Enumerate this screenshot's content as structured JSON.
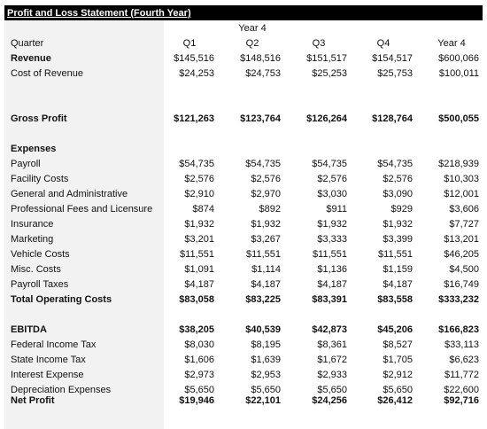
{
  "title": "Profit and Loss Statement (Fourth Year)",
  "year_label": "Year 4",
  "header": {
    "label": "Quarter",
    "columns": [
      "Q1",
      "Q2",
      "Q3",
      "Q4",
      "Year 4"
    ]
  },
  "revenue": {
    "label": "Revenue",
    "values": [
      "$145,516",
      "$148,516",
      "$151,517",
      "$154,517",
      "$600,066"
    ]
  },
  "cost_of_revenue": {
    "label": "Cost of Revenue",
    "values": [
      "$24,253",
      "$24,753",
      "$25,253",
      "$25,753",
      "$100,011"
    ]
  },
  "gross_profit": {
    "label": "Gross Profit",
    "values": [
      "$121,263",
      "$123,764",
      "$126,264",
      "$128,764",
      "$500,055"
    ]
  },
  "expenses_heading": "Expenses",
  "expenses": [
    {
      "label": "Payroll",
      "values": [
        "$54,735",
        "$54,735",
        "$54,735",
        "$54,735",
        "$218,939"
      ]
    },
    {
      "label": "Facility Costs",
      "values": [
        "$2,576",
        "$2,576",
        "$2,576",
        "$2,576",
        "$10,303"
      ]
    },
    {
      "label": "General and Administrative",
      "values": [
        "$2,910",
        "$2,970",
        "$3,030",
        "$3,090",
        "$12,001"
      ]
    },
    {
      "label": "Professional Fees and Licensure",
      "values": [
        "$874",
        "$892",
        "$911",
        "$929",
        "$3,606"
      ]
    },
    {
      "label": "Insurance",
      "values": [
        "$1,932",
        "$1,932",
        "$1,932",
        "$1,932",
        "$7,727"
      ]
    },
    {
      "label": "Marketing",
      "values": [
        "$3,201",
        "$3,267",
        "$3,333",
        "$3,399",
        "$13,201"
      ]
    },
    {
      "label": "Vehicle Costs",
      "values": [
        "$11,551",
        "$11,551",
        "$11,551",
        "$11,551",
        "$46,205"
      ]
    },
    {
      "label": "Misc. Costs",
      "values": [
        "$1,091",
        "$1,114",
        "$1,136",
        "$1,159",
        "$4,500"
      ]
    },
    {
      "label": "Payroll Taxes",
      "values": [
        "$4,187",
        "$4,187",
        "$4,187",
        "$4,187",
        "$16,749"
      ]
    }
  ],
  "total_operating_costs": {
    "label": "Total Operating Costs",
    "values": [
      "$83,058",
      "$83,225",
      "$83,391",
      "$83,558",
      "$333,232"
    ]
  },
  "ebitda": {
    "label": "EBITDA",
    "values": [
      "$38,205",
      "$40,539",
      "$42,873",
      "$45,206",
      "$166,823"
    ]
  },
  "below_ebitda": [
    {
      "label": "Federal Income Tax",
      "values": [
        "$8,030",
        "$8,195",
        "$8,361",
        "$8,527",
        "$33,113"
      ]
    },
    {
      "label": "State Income Tax",
      "values": [
        "$1,606",
        "$1,639",
        "$1,672",
        "$1,705",
        "$6,623"
      ]
    },
    {
      "label": "Interest Expense",
      "values": [
        "$2,973",
        "$2,953",
        "$2,933",
        "$2,912",
        "$11,772"
      ]
    },
    {
      "label": "Depreciation Expenses",
      "values": [
        "$5,650",
        "$5,650",
        "$5,650",
        "$5,650",
        "$22,600"
      ]
    }
  ],
  "net_profit": {
    "label": "Net Profit",
    "values": [
      "$19,946",
      "$22,101",
      "$24,256",
      "$26,412",
      "$92,716"
    ]
  }
}
